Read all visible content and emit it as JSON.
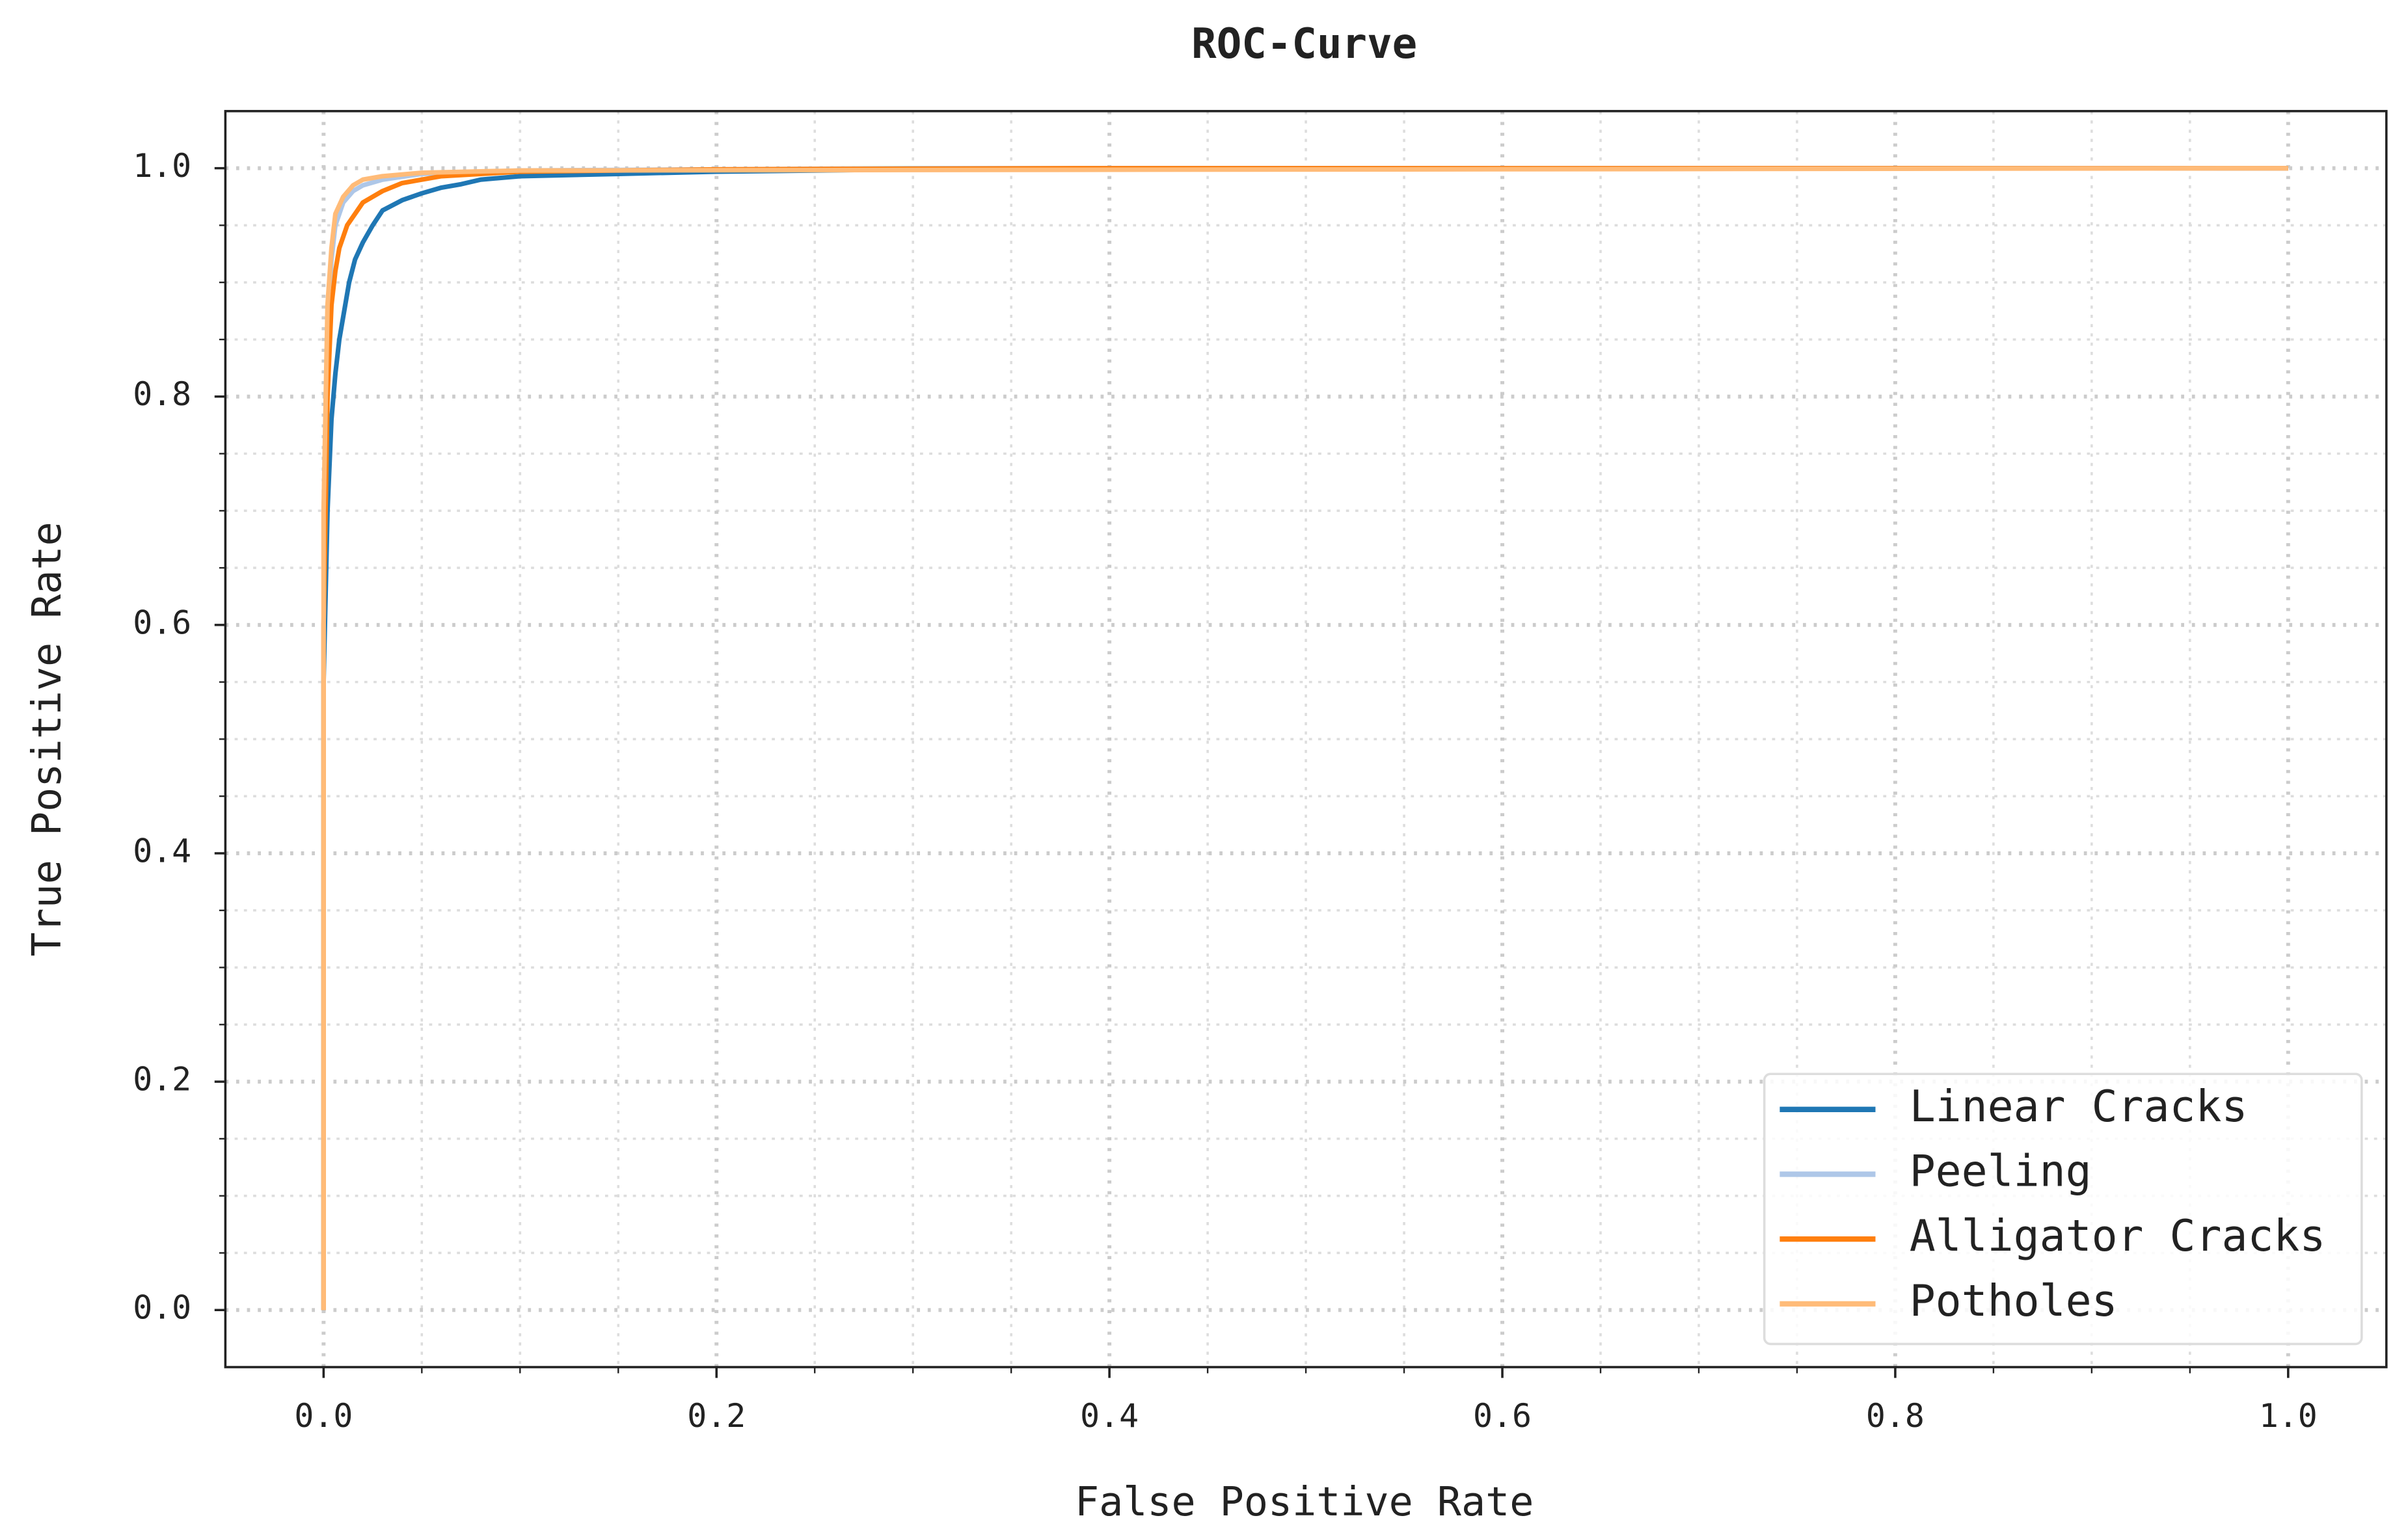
{
  "chart_data": {
    "type": "line",
    "title": "ROC-Curve",
    "xlabel": "False Positive Rate",
    "ylabel": "True Positive Rate",
    "xlim": [
      -0.05,
      1.05
    ],
    "ylim": [
      -0.05,
      1.05
    ],
    "xticks": [
      {
        "value": 0,
        "label": "0.0"
      },
      0.2,
      0.4,
      0.6,
      0.8,
      {
        "value": 1,
        "label": "1.0"
      }
    ],
    "yticks": [
      {
        "value": 0,
        "label": "0.0"
      },
      0.2,
      0.4,
      0.6,
      0.8,
      {
        "value": 1,
        "label": "1.0"
      }
    ],
    "xminorticks": [
      0.05,
      0.1,
      0.15,
      0.25,
      0.3,
      0.35,
      0.45,
      0.5,
      0.55,
      0.65,
      0.7,
      0.75,
      0.85,
      0.9,
      0.95
    ],
    "yminorticks": [
      0.05,
      0.1,
      0.15,
      0.25,
      0.3,
      0.35,
      0.45,
      0.5,
      0.55,
      0.65,
      0.7,
      0.75,
      0.85,
      0.9,
      0.95
    ],
    "grid": true,
    "legend": "lower right",
    "series": [
      {
        "name": "Linear Cracks",
        "color": "#1f77b4",
        "x": [
          0,
          0,
          0.002,
          0.004,
          0.006,
          0.008,
          0.01,
          0.013,
          0.016,
          0.02,
          0.025,
          0.03,
          0.04,
          0.05,
          0.06,
          0.07,
          0.08,
          0.1,
          0.15,
          0.2,
          0.3,
          0.4,
          1.0
        ],
        "values": [
          0,
          0.55,
          0.7,
          0.78,
          0.82,
          0.85,
          0.87,
          0.9,
          0.92,
          0.935,
          0.95,
          0.963,
          0.972,
          0.978,
          0.983,
          0.986,
          0.99,
          0.993,
          0.995,
          0.997,
          0.999,
          1.0,
          1.0
        ]
      },
      {
        "name": "Peeling",
        "color": "#aec7e8",
        "x": [
          0,
          0,
          0.002,
          0.004,
          0.006,
          0.01,
          0.015,
          0.02,
          0.03,
          0.05,
          0.1,
          0.3,
          1.0
        ],
        "values": [
          0,
          0.6,
          0.85,
          0.92,
          0.95,
          0.97,
          0.98,
          0.985,
          0.99,
          0.995,
          0.998,
          1.0,
          1.0
        ]
      },
      {
        "name": "Alligator Cracks",
        "color": "#ff7f0e",
        "x": [
          0,
          0,
          0.002,
          0.004,
          0.006,
          0.008,
          0.012,
          0.016,
          0.02,
          0.03,
          0.04,
          0.06,
          0.1,
          0.2,
          0.39,
          1.0
        ],
        "values": [
          0,
          0.6,
          0.8,
          0.88,
          0.91,
          0.93,
          0.95,
          0.96,
          0.97,
          0.98,
          0.987,
          0.993,
          0.997,
          0.999,
          1.0,
          1.0
        ]
      },
      {
        "name": "Potholes",
        "color": "#ffbb78",
        "x": [
          0,
          0,
          0.002,
          0.004,
          0.006,
          0.01,
          0.015,
          0.02,
          0.03,
          0.05,
          0.1,
          1.0
        ],
        "values": [
          0,
          0.7,
          0.88,
          0.93,
          0.96,
          0.975,
          0.985,
          0.99,
          0.993,
          0.996,
          0.998,
          1.0
        ]
      }
    ]
  }
}
